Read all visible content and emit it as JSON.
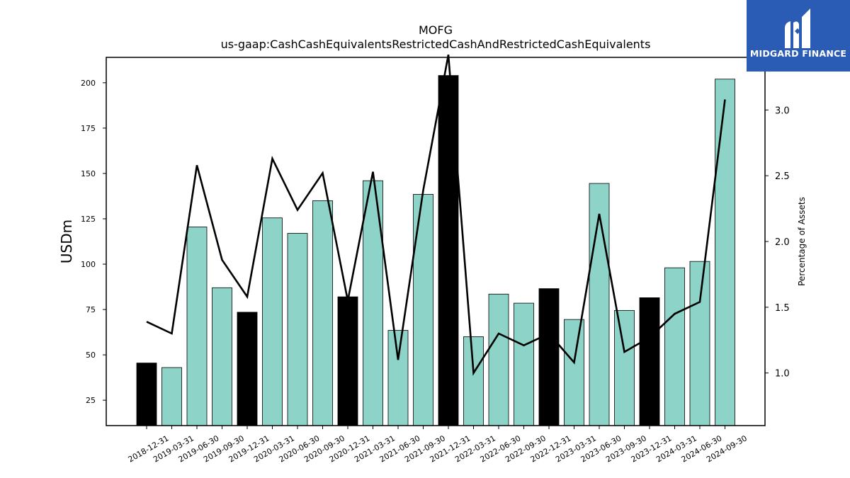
{
  "brand": {
    "name": "MIDGARD FINANCE",
    "bg_color": "#2a5bb5"
  },
  "chart_data": {
    "type": "bar",
    "title": "MOFG",
    "subtitle": "us-gaap:CashCashEquivalentsRestrictedCashAndRestrictedCashEquivalents",
    "ylabel": "USDm",
    "y2label": "Percentage of Assets",
    "ylim": [
      11,
      214
    ],
    "y2lim": [
      0.6,
      3.4
    ],
    "yticks": [
      25,
      50,
      75,
      100,
      125,
      150,
      175,
      200
    ],
    "y2ticks": [
      1.0,
      1.5,
      2.0,
      2.5,
      3.0
    ],
    "bar_color": "#8dd3c7",
    "highlight_color": "#000000",
    "line_color": "#000000",
    "grid": false,
    "categories": [
      "2018-12-31",
      "2019-03-31",
      "2019-06-30",
      "2019-09-30",
      "2019-12-31",
      "2020-03-31",
      "2020-06-30",
      "2020-09-30",
      "2020-12-31",
      "2021-03-31",
      "2021-06-30",
      "2021-09-30",
      "2021-12-31",
      "2022-03-31",
      "2022-06-30",
      "2022-09-30",
      "2022-12-31",
      "2023-03-31",
      "2023-06-30",
      "2023-09-30",
      "2023-12-31",
      "2024-03-31",
      "2024-06-30",
      "2024-09-30"
    ],
    "series": [
      {
        "type": "bar",
        "axis": "left",
        "values": [
          45.5,
          43,
          120.5,
          87,
          73.5,
          125.5,
          117,
          135,
          82,
          146,
          63.5,
          138.5,
          204,
          60,
          83.5,
          78.5,
          86.5,
          69.5,
          144.5,
          74.5,
          81.5,
          98,
          101.5,
          202
        ],
        "highlight": [
          true,
          false,
          false,
          false,
          true,
          false,
          false,
          false,
          true,
          false,
          false,
          false,
          true,
          false,
          false,
          false,
          true,
          false,
          false,
          false,
          true,
          false,
          false,
          false
        ]
      },
      {
        "type": "line",
        "axis": "right",
        "values": [
          1.39,
          1.3,
          2.58,
          1.86,
          1.58,
          2.63,
          2.24,
          2.52,
          1.55,
          2.53,
          1.1,
          2.39,
          3.42,
          1.0,
          1.3,
          1.21,
          1.3,
          1.08,
          2.21,
          1.16,
          1.27,
          1.45,
          1.54,
          3.08
        ]
      }
    ]
  }
}
